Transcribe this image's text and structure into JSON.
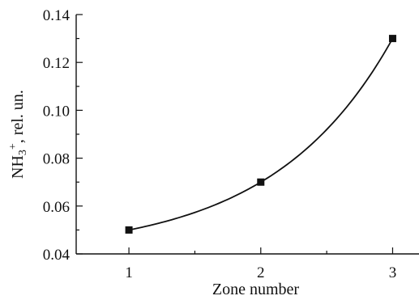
{
  "chart_data": {
    "type": "line",
    "x": [
      1,
      2,
      3
    ],
    "series": [
      {
        "values": [
          0.05,
          0.07,
          0.13
        ]
      }
    ],
    "xlabel": "Zone number",
    "ylabel": {
      "base": "NH",
      "subscript": "3",
      "superscript": "+",
      "rest": ", rel. un."
    },
    "xlim": [
      0.6,
      3.2
    ],
    "ylim": [
      0.04,
      0.14
    ],
    "x_ticks": [
      "1",
      "2",
      "3"
    ],
    "y_ticks": [
      "0.04",
      "0.06",
      "0.08",
      "0.10",
      "0.12",
      "0.14"
    ],
    "x_tick_values": [
      1,
      2,
      3
    ],
    "y_tick_values": [
      0.04,
      0.06,
      0.08,
      0.1,
      0.12,
      0.14
    ],
    "grid": false,
    "marker": "square",
    "line_style": "smooth",
    "colors": {
      "line": "#111111",
      "marker": "#111111",
      "axis": "#111111"
    }
  }
}
